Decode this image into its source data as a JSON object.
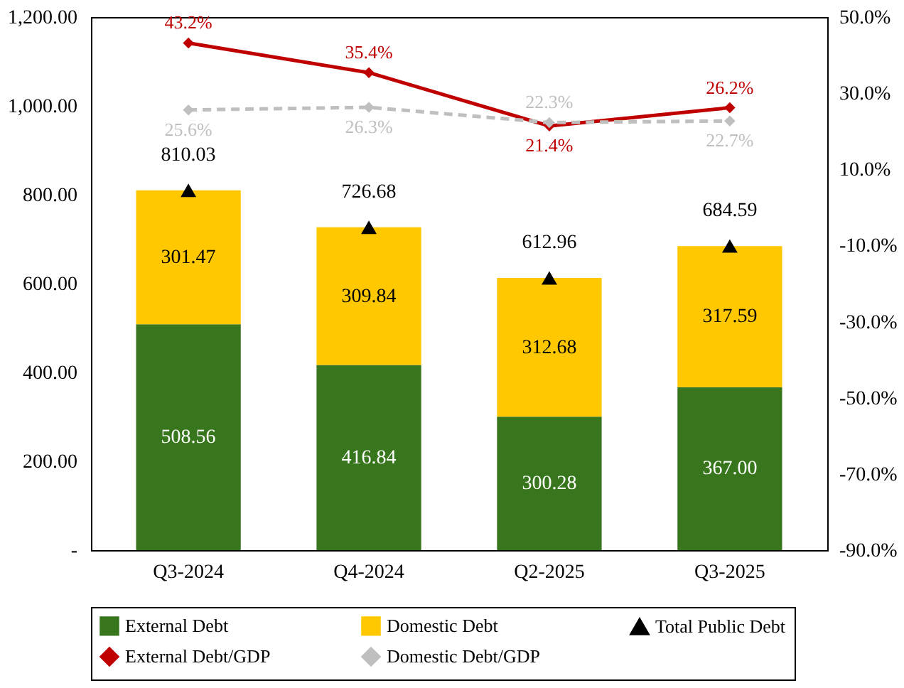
{
  "chart_data": {
    "type": "bar",
    "stacked": true,
    "categories": [
      "Q3-2024",
      "Q4-2024",
      "Q2-2025",
      "Q3-2025"
    ],
    "series": [
      {
        "name": "External Debt",
        "color": "#38761d",
        "values": [
          508.56,
          416.84,
          300.28,
          367.0
        ],
        "value_labels": [
          "508.56",
          "416.84",
          "300.28",
          "367.00"
        ]
      },
      {
        "name": "Domestic Debt",
        "color": "#ffc800",
        "values": [
          301.47,
          309.84,
          312.68,
          317.59
        ],
        "value_labels": [
          "301.47",
          "309.84",
          "312.68",
          "317.59"
        ]
      },
      {
        "name": "Total Public Debt",
        "type": "scatter",
        "marker": "triangle",
        "color": "#000000",
        "values": [
          810.03,
          726.68,
          612.96,
          684.59
        ],
        "value_labels": [
          "810.03",
          "726.68",
          "612.96",
          "684.59"
        ]
      },
      {
        "name": "External Debt/GDP",
        "type": "line",
        "axis": "y2",
        "marker": "diamond",
        "line_style": "solid",
        "color": "#c00000",
        "values": [
          43.2,
          35.4,
          21.4,
          26.2
        ],
        "value_labels": [
          "43.2%",
          "35.4%",
          "21.4%",
          "26.2%"
        ]
      },
      {
        "name": "Domestic Debt/GDP",
        "type": "line",
        "axis": "y2",
        "marker": "diamond",
        "line_style": "dashed",
        "color": "#bfbfbf",
        "values": [
          25.6,
          26.3,
          22.3,
          22.7
        ],
        "value_labels": [
          "25.6%",
          "26.3%",
          "22.3%",
          "22.7%"
        ]
      }
    ],
    "ylim": [
      0,
      1200
    ],
    "yticks": [
      {
        "value": 0,
        "label": "-"
      },
      {
        "value": 200,
        "label": "200.00"
      },
      {
        "value": 400,
        "label": "400.00"
      },
      {
        "value": 600,
        "label": "600.00"
      },
      {
        "value": 800,
        "label": "800.00"
      },
      {
        "value": 1000,
        "label": "1,000.00"
      },
      {
        "value": 1200,
        "label": "1,200.00"
      }
    ],
    "y2lim": [
      -90,
      50
    ],
    "y2ticks": [
      {
        "value": -90,
        "label": "-90.0%"
      },
      {
        "value": -70,
        "label": "-70.0%"
      },
      {
        "value": -50,
        "label": "-50.0%"
      },
      {
        "value": -30,
        "label": "-30.0%"
      },
      {
        "value": -10,
        "label": "-10.0%"
      },
      {
        "value": 10,
        "label": "10.0%"
      },
      {
        "value": 30,
        "label": "30.0%"
      },
      {
        "value": 50,
        "label": "50.0%"
      }
    ],
    "grid": false,
    "legend": "bottom"
  }
}
